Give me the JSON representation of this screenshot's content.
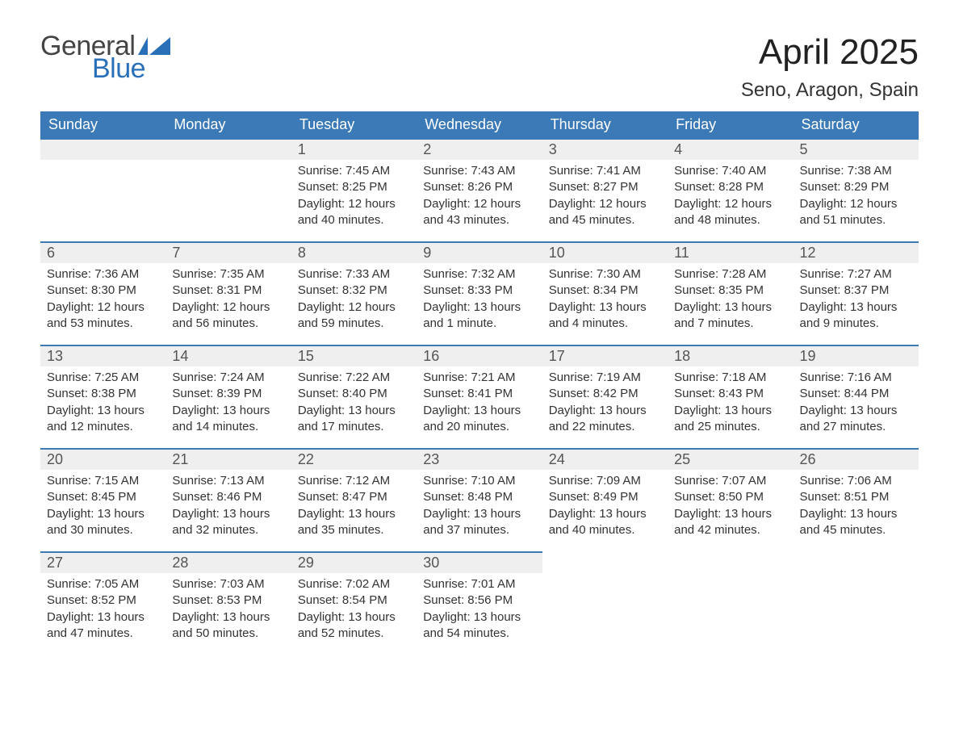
{
  "logo": {
    "word1": "General",
    "word2": "Blue",
    "flag_color": "#2a70b8"
  },
  "title": "April 2025",
  "location": "Seno, Aragon, Spain",
  "colors": {
    "header_bg": "#3b79b7",
    "header_text": "#ffffff",
    "daynum_bg": "#efefef",
    "row_border": "#3b79b7",
    "body_text": "#333333"
  },
  "weekdays": [
    "Sunday",
    "Monday",
    "Tuesday",
    "Wednesday",
    "Thursday",
    "Friday",
    "Saturday"
  ],
  "labels": {
    "sunrise": "Sunrise:",
    "sunset": "Sunset:",
    "daylight": "Daylight:"
  },
  "weeks": [
    [
      null,
      null,
      {
        "n": "1",
        "sunrise": "7:45 AM",
        "sunset": "8:25 PM",
        "daylight": "12 hours and 40 minutes."
      },
      {
        "n": "2",
        "sunrise": "7:43 AM",
        "sunset": "8:26 PM",
        "daylight": "12 hours and 43 minutes."
      },
      {
        "n": "3",
        "sunrise": "7:41 AM",
        "sunset": "8:27 PM",
        "daylight": "12 hours and 45 minutes."
      },
      {
        "n": "4",
        "sunrise": "7:40 AM",
        "sunset": "8:28 PM",
        "daylight": "12 hours and 48 minutes."
      },
      {
        "n": "5",
        "sunrise": "7:38 AM",
        "sunset": "8:29 PM",
        "daylight": "12 hours and 51 minutes."
      }
    ],
    [
      {
        "n": "6",
        "sunrise": "7:36 AM",
        "sunset": "8:30 PM",
        "daylight": "12 hours and 53 minutes."
      },
      {
        "n": "7",
        "sunrise": "7:35 AM",
        "sunset": "8:31 PM",
        "daylight": "12 hours and 56 minutes."
      },
      {
        "n": "8",
        "sunrise": "7:33 AM",
        "sunset": "8:32 PM",
        "daylight": "12 hours and 59 minutes."
      },
      {
        "n": "9",
        "sunrise": "7:32 AM",
        "sunset": "8:33 PM",
        "daylight": "13 hours and 1 minute."
      },
      {
        "n": "10",
        "sunrise": "7:30 AM",
        "sunset": "8:34 PM",
        "daylight": "13 hours and 4 minutes."
      },
      {
        "n": "11",
        "sunrise": "7:28 AM",
        "sunset": "8:35 PM",
        "daylight": "13 hours and 7 minutes."
      },
      {
        "n": "12",
        "sunrise": "7:27 AM",
        "sunset": "8:37 PM",
        "daylight": "13 hours and 9 minutes."
      }
    ],
    [
      {
        "n": "13",
        "sunrise": "7:25 AM",
        "sunset": "8:38 PM",
        "daylight": "13 hours and 12 minutes."
      },
      {
        "n": "14",
        "sunrise": "7:24 AM",
        "sunset": "8:39 PM",
        "daylight": "13 hours and 14 minutes."
      },
      {
        "n": "15",
        "sunrise": "7:22 AM",
        "sunset": "8:40 PM",
        "daylight": "13 hours and 17 minutes."
      },
      {
        "n": "16",
        "sunrise": "7:21 AM",
        "sunset": "8:41 PM",
        "daylight": "13 hours and 20 minutes."
      },
      {
        "n": "17",
        "sunrise": "7:19 AM",
        "sunset": "8:42 PM",
        "daylight": "13 hours and 22 minutes."
      },
      {
        "n": "18",
        "sunrise": "7:18 AM",
        "sunset": "8:43 PM",
        "daylight": "13 hours and 25 minutes."
      },
      {
        "n": "19",
        "sunrise": "7:16 AM",
        "sunset": "8:44 PM",
        "daylight": "13 hours and 27 minutes."
      }
    ],
    [
      {
        "n": "20",
        "sunrise": "7:15 AM",
        "sunset": "8:45 PM",
        "daylight": "13 hours and 30 minutes."
      },
      {
        "n": "21",
        "sunrise": "7:13 AM",
        "sunset": "8:46 PM",
        "daylight": "13 hours and 32 minutes."
      },
      {
        "n": "22",
        "sunrise": "7:12 AM",
        "sunset": "8:47 PM",
        "daylight": "13 hours and 35 minutes."
      },
      {
        "n": "23",
        "sunrise": "7:10 AM",
        "sunset": "8:48 PM",
        "daylight": "13 hours and 37 minutes."
      },
      {
        "n": "24",
        "sunrise": "7:09 AM",
        "sunset": "8:49 PM",
        "daylight": "13 hours and 40 minutes."
      },
      {
        "n": "25",
        "sunrise": "7:07 AM",
        "sunset": "8:50 PM",
        "daylight": "13 hours and 42 minutes."
      },
      {
        "n": "26",
        "sunrise": "7:06 AM",
        "sunset": "8:51 PM",
        "daylight": "13 hours and 45 minutes."
      }
    ],
    [
      {
        "n": "27",
        "sunrise": "7:05 AM",
        "sunset": "8:52 PM",
        "daylight": "13 hours and 47 minutes."
      },
      {
        "n": "28",
        "sunrise": "7:03 AM",
        "sunset": "8:53 PM",
        "daylight": "13 hours and 50 minutes."
      },
      {
        "n": "29",
        "sunrise": "7:02 AM",
        "sunset": "8:54 PM",
        "daylight": "13 hours and 52 minutes."
      },
      {
        "n": "30",
        "sunrise": "7:01 AM",
        "sunset": "8:56 PM",
        "daylight": "13 hours and 54 minutes."
      },
      null,
      null,
      null
    ]
  ]
}
